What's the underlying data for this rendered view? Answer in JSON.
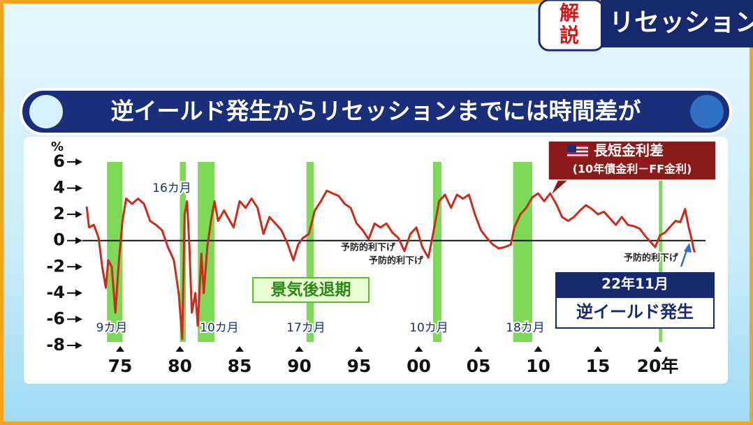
{
  "header": {
    "badge": [
      "解",
      "説"
    ],
    "banner": "リセッションを"
  },
  "chart_data": {
    "type": "line",
    "title": "逆イールド発生からリセッションまでには時間差が",
    "y_unit": "%",
    "series": [
      {
        "name": "長短金利差",
        "note": "(10年債金利－FF金利)",
        "color": "#cc2a1a",
        "x": [
          1972.2,
          1972.4,
          1972.8,
          1973.2,
          1973.5,
          1973.8,
          1974.0,
          1974.3,
          1974.6,
          1974.9,
          1975.2,
          1975.5,
          1976.0,
          1976.5,
          1977.0,
          1977.5,
          1978.0,
          1978.5,
          1979.0,
          1979.5,
          1979.9,
          1980.2,
          1980.4,
          1980.6,
          1980.8,
          1981.0,
          1981.3,
          1981.5,
          1981.8,
          1982.0,
          1982.3,
          1982.6,
          1982.9,
          1983.2,
          1983.7,
          1984.0,
          1984.5,
          1985.0,
          1985.5,
          1986.0,
          1986.5,
          1987.0,
          1987.5,
          1988.0,
          1988.5,
          1989.0,
          1989.5,
          1989.9,
          1990.3,
          1990.8,
          1991.3,
          1991.8,
          1992.3,
          1992.8,
          1993.3,
          1993.8,
          1994.3,
          1994.8,
          1995.3,
          1995.8,
          1996.3,
          1996.8,
          1997.3,
          1997.8,
          1998.3,
          1998.8,
          1999.3,
          1999.8,
          2000.3,
          2000.8,
          2001.2,
          2001.7,
          2002.2,
          2002.7,
          2003.2,
          2003.7,
          2004.2,
          2004.7,
          2005.2,
          2005.7,
          2006.2,
          2006.7,
          2007.2,
          2007.7,
          2008.0,
          2008.5,
          2009.0,
          2009.5,
          2010.0,
          2010.5,
          2011.0,
          2011.5,
          2012.0,
          2012.5,
          2013.0,
          2013.5,
          2014.0,
          2014.5,
          2015.0,
          2015.5,
          2016.0,
          2016.5,
          2017.0,
          2017.5,
          2018.0,
          2018.5,
          2019.0,
          2019.5,
          2019.8,
          2020.2,
          2020.6,
          2021.0,
          2021.5,
          2021.9,
          2022.3,
          2022.6,
          2022.8,
          2023.0,
          2023.1
        ],
        "values": [
          2.6,
          1.0,
          1.2,
          0.2,
          -2.0,
          -3.6,
          -1.5,
          -2.0,
          -5.5,
          -1.5,
          1.5,
          3.2,
          2.8,
          3.2,
          2.8,
          1.5,
          1.2,
          0.8,
          -0.5,
          -1.5,
          -4.0,
          -7.5,
          2.0,
          3.0,
          -0.5,
          -5.5,
          -4.0,
          -6.5,
          -1.0,
          -4.0,
          -0.5,
          1.5,
          3.0,
          1.5,
          2.3,
          1.8,
          1.0,
          3.0,
          2.5,
          3.2,
          2.5,
          0.5,
          1.8,
          1.3,
          0.8,
          -0.2,
          -1.5,
          -0.3,
          0.2,
          0.5,
          2.3,
          3.0,
          3.8,
          3.6,
          3.4,
          2.8,
          2.5,
          1.3,
          0.8,
          0.1,
          1.3,
          1.0,
          1.3,
          0.6,
          0.2,
          -0.8,
          0.5,
          1.0,
          -0.5,
          -1.3,
          0.5,
          3.0,
          3.5,
          2.5,
          3.5,
          3.2,
          3.5,
          2.0,
          0.8,
          0.2,
          -0.3,
          -0.6,
          -0.5,
          -0.3,
          1.0,
          2.0,
          2.5,
          3.3,
          3.6,
          3.0,
          3.6,
          2.8,
          1.8,
          1.5,
          1.8,
          2.3,
          2.7,
          2.4,
          2.0,
          2.2,
          1.7,
          1.2,
          1.8,
          1.2,
          1.1,
          0.9,
          0.3,
          -0.2,
          -0.5,
          0.4,
          0.6,
          1.0,
          1.5,
          1.4,
          2.4,
          1.0,
          0.3,
          -0.6,
          -0.9
        ]
      }
    ],
    "xlim": [
      1972,
      2024
    ],
    "xticks": [
      {
        "value": 1975,
        "label": "75"
      },
      {
        "value": 1980,
        "label": "80"
      },
      {
        "value": 1985,
        "label": "85"
      },
      {
        "value": 1990,
        "label": "90"
      },
      {
        "value": 1995,
        "label": "95"
      },
      {
        "value": 2000,
        "label": "00"
      },
      {
        "value": 2005,
        "label": "05"
      },
      {
        "value": 2010,
        "label": "10"
      },
      {
        "value": 2015,
        "label": "15"
      },
      {
        "value": 2020,
        "label": "20年"
      }
    ],
    "ylim": [
      -8,
      6
    ],
    "yticks": [
      6,
      4,
      2,
      0,
      -2,
      -4,
      -6,
      -8
    ],
    "zero_line": true,
    "recessions": [
      [
        1973.9,
        1975.2
      ],
      [
        1980.0,
        1980.5
      ],
      [
        1981.5,
        1982.9
      ],
      [
        1990.6,
        1991.2
      ],
      [
        2001.2,
        2001.9
      ],
      [
        2007.9,
        2009.5
      ],
      [
        2020.1,
        2020.4
      ]
    ],
    "recession_color": "#7ed957",
    "recession_label": "景気後退期",
    "lag_labels": [
      "9カ月",
      "16カ月",
      "10カ月",
      "17カ月",
      "10カ月",
      "18カ月"
    ],
    "cut_labels": [
      "予防的利下げ",
      "予防的利下げ",
      "予防的利下げ"
    ],
    "callout": {
      "date": "22年11月",
      "text": "逆イールド発生"
    }
  }
}
